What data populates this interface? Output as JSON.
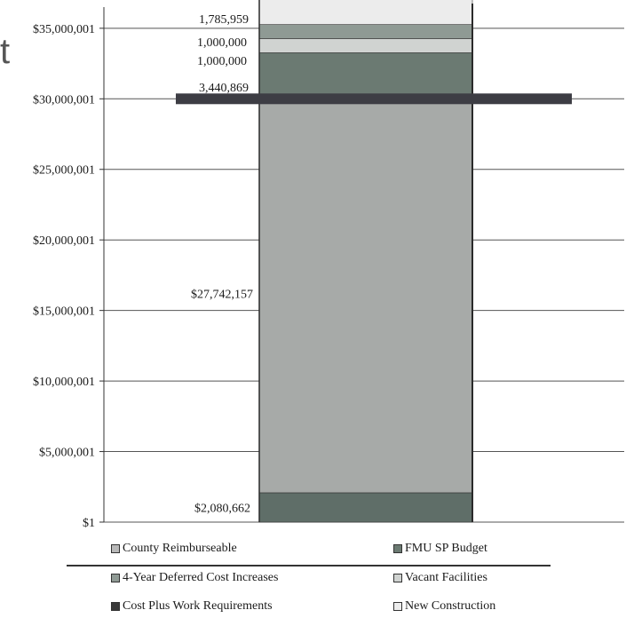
{
  "fragment_text": "t",
  "colors": {
    "county": "#b8b8b8",
    "fmu": "#6b7a72",
    "deferred": "#8f9a94",
    "vacant": "#d0d3d1",
    "costplus": "#3a3a3a",
    "newcon": "#ececec",
    "bar_main": "#a7aaa8",
    "bar_bottom": "#5f6e68",
    "ref_line": "#3d3d44"
  },
  "chart_data": {
    "type": "bar",
    "stacked": true,
    "ylim": [
      1,
      36500001
    ],
    "yticks": [
      "$1",
      "$5,000,001",
      "$10,000,001",
      "$15,000,001",
      "$20,000,001",
      "$25,000,001",
      "$30,000,001",
      "$35,000,001"
    ],
    "ytick_values": [
      1,
      5000001,
      10000001,
      15000001,
      20000001,
      25000001,
      30000001,
      35000001
    ],
    "grid": true,
    "reference_line_value": 30000001,
    "segments": [
      {
        "label": "$2,080,662",
        "value": 2080662,
        "color_key": "bar_bottom"
      },
      {
        "label": "$27,742,157",
        "value": 27742157,
        "color_key": "bar_main"
      },
      {
        "label": "3,440,869",
        "value": 3440869,
        "color_key": "fmu"
      },
      {
        "label": "1,000,000",
        "value": 1000000,
        "color_key": "vacant"
      },
      {
        "label": "1,000,000",
        "value": 1000000,
        "color_key": "deferred"
      },
      {
        "label": "1,785,959",
        "value": 1785959,
        "color_key": "newcon"
      }
    ],
    "legend": [
      {
        "name": "County Reimburseable",
        "color_key": "county"
      },
      {
        "name": "FMU SP Budget",
        "color_key": "fmu"
      },
      {
        "name": "4-Year Deferred Cost Increases",
        "color_key": "deferred"
      },
      {
        "name": "Vacant Facilities",
        "color_key": "vacant"
      },
      {
        "name": "Cost Plus Work Requirements",
        "color_key": "costplus"
      },
      {
        "name": "New Construction",
        "color_key": "newcon"
      }
    ],
    "legend_placement": "bottom"
  }
}
